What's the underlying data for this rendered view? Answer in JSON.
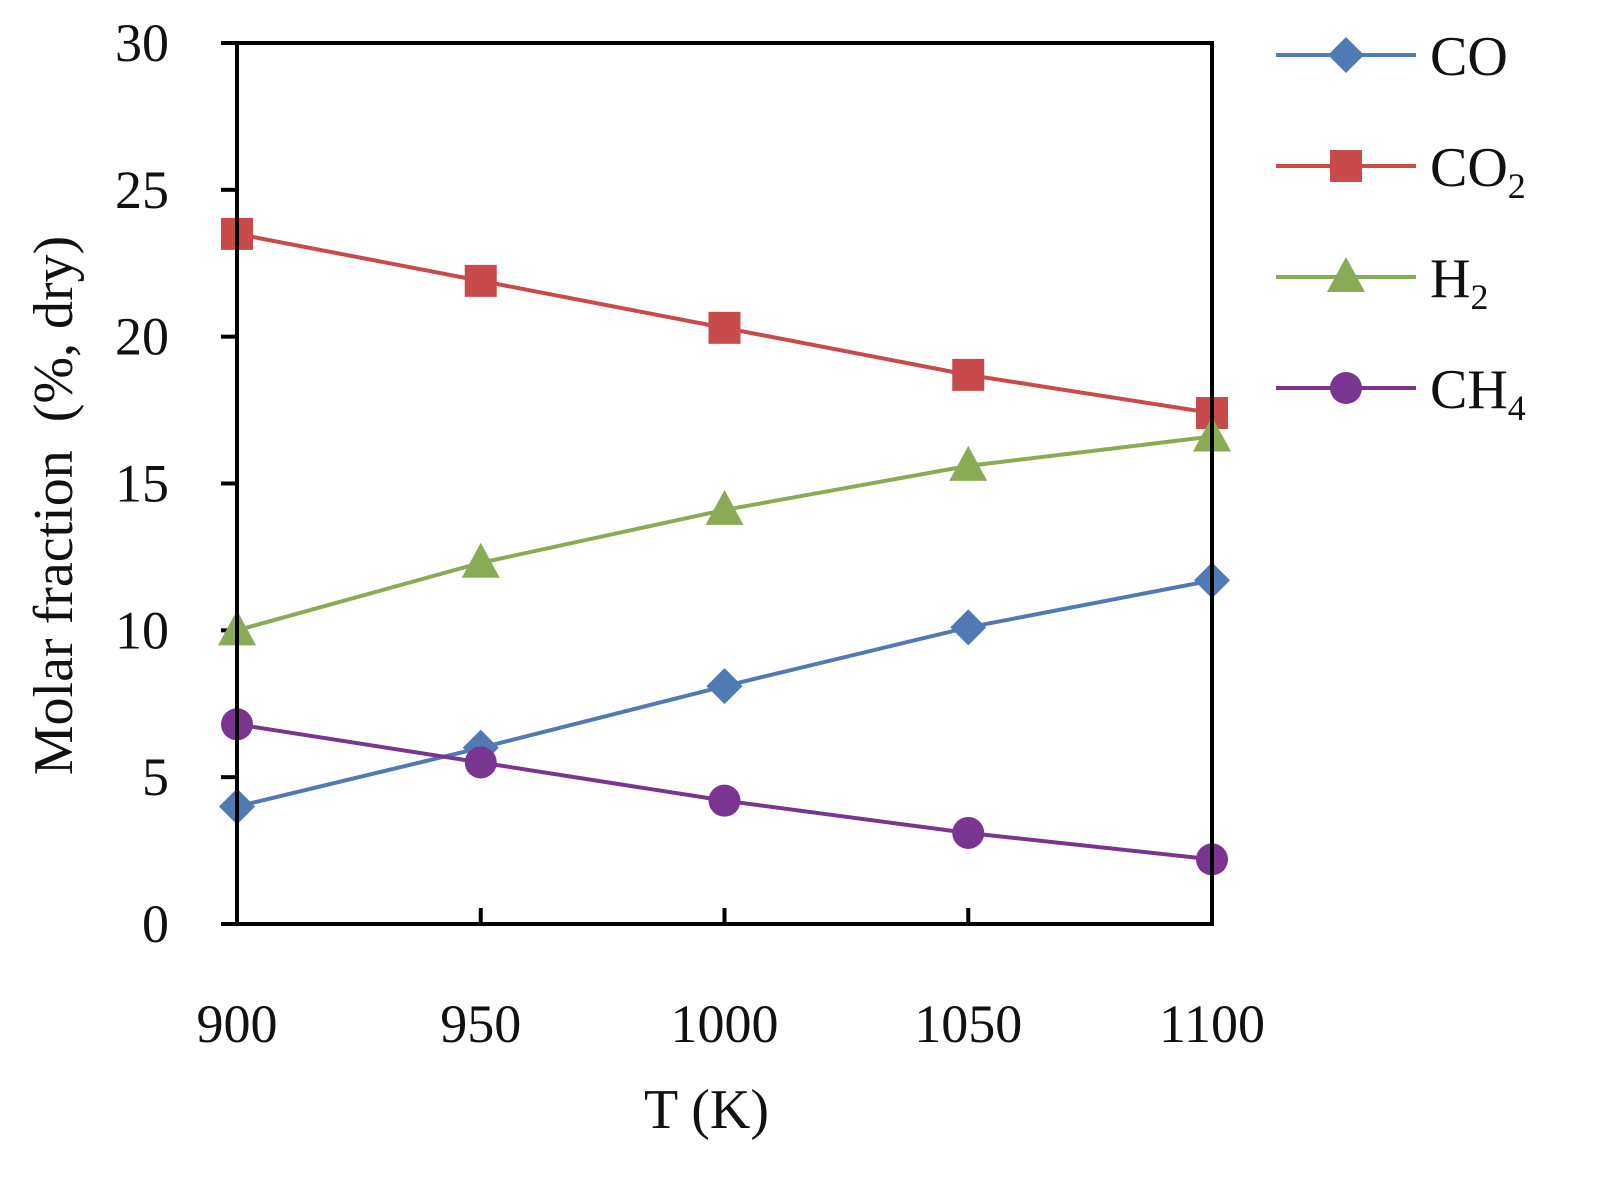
{
  "chart_data": {
    "type": "line",
    "title": "",
    "xlabel": "T (K)",
    "ylabel": "Molar fraction  (%, dry)",
    "xlim": [
      900,
      1100
    ],
    "ylim": [
      0,
      30
    ],
    "x": [
      900,
      950,
      1000,
      1050,
      1100
    ],
    "x_ticks": [
      "900",
      "950",
      "1000",
      "1050",
      "1100"
    ],
    "y_ticks": [
      "0",
      "5",
      "10",
      "15",
      "20",
      "25",
      "30"
    ],
    "grid": false,
    "legend_position": "right",
    "series": [
      {
        "name": "CO",
        "base": "CO",
        "sub": "",
        "marker": "diamond",
        "color": "#4f7ab3",
        "values": [
          4.0,
          6.0,
          8.1,
          10.1,
          11.7
        ]
      },
      {
        "name": "CO2",
        "base": "CO",
        "sub": "2",
        "marker": "square",
        "color": "#c94a4a",
        "values": [
          23.5,
          21.9,
          20.3,
          18.7,
          17.4
        ]
      },
      {
        "name": "H2",
        "base": "H",
        "sub": "2",
        "marker": "triangle",
        "color": "#8aab56",
        "values": [
          10.0,
          12.3,
          14.1,
          15.6,
          16.6
        ]
      },
      {
        "name": "CH4",
        "base": "CH",
        "sub": "4",
        "marker": "circle",
        "color": "#7a3590",
        "values": [
          6.8,
          5.5,
          4.2,
          3.1,
          2.2
        ]
      }
    ]
  }
}
